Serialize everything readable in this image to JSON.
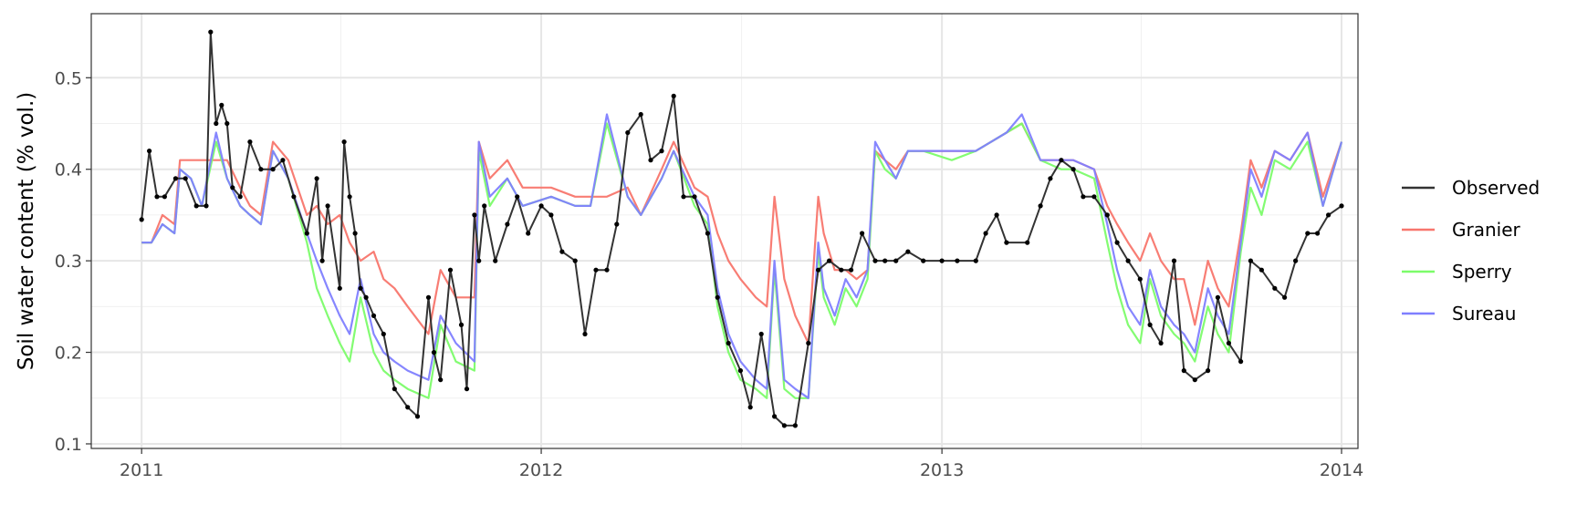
{
  "chart_data": {
    "type": "line",
    "title": "",
    "xlabel": "",
    "ylabel": "Soil water content (% vol.)",
    "xlim": [
      "2010-11-16",
      "2014-01-16"
    ],
    "ylim": [
      0.095,
      0.57
    ],
    "grid": true,
    "legend_position": "right",
    "x_ticks": [
      {
        "value": "2011-01-01",
        "label": "2011"
      },
      {
        "value": "2012-01-01",
        "label": "2012"
      },
      {
        "value": "2013-01-01",
        "label": "2013"
      },
      {
        "value": "2014-01-01",
        "label": "2014"
      }
    ],
    "y_ticks": [
      {
        "value": 0.1,
        "label": "0.1"
      },
      {
        "value": 0.2,
        "label": "0.2"
      },
      {
        "value": 0.3,
        "label": "0.3"
      },
      {
        "value": 0.4,
        "label": "0.4"
      },
      {
        "value": 0.5,
        "label": "0.5"
      }
    ],
    "series": [
      {
        "name": "Granier",
        "color": "#F8766D",
        "x": [
          "2011-01-01",
          "2011-01-10",
          "2011-01-20",
          "2011-01-31",
          "2011-02-05",
          "2011-02-15",
          "2011-02-25",
          "2011-03-10",
          "2011-03-20",
          "2011-04-01",
          "2011-04-10",
          "2011-04-20",
          "2011-05-01",
          "2011-05-15",
          "2011-06-01",
          "2011-06-10",
          "2011-06-20",
          "2011-07-01",
          "2011-07-10",
          "2011-07-20",
          "2011-08-01",
          "2011-08-10",
          "2011-08-20",
          "2011-09-01",
          "2011-09-20",
          "2011-10-01",
          "2011-10-15",
          "2011-11-01",
          "2011-11-05",
          "2011-11-15",
          "2011-12-01",
          "2011-12-15",
          "2012-01-10",
          "2012-02-01",
          "2012-02-15",
          "2012-03-01",
          "2012-03-20",
          "2012-04-01",
          "2012-04-20",
          "2012-05-01",
          "2012-05-20",
          "2012-06-01",
          "2012-06-10",
          "2012-06-20",
          "2012-07-01",
          "2012-07-15",
          "2012-07-25",
          "2012-08-01",
          "2012-08-10",
          "2012-08-20",
          "2012-09-01",
          "2012-09-10",
          "2012-09-15",
          "2012-09-25",
          "2012-10-05",
          "2012-10-15",
          "2012-10-25",
          "2012-11-01",
          "2012-11-10",
          "2012-11-20",
          "2012-12-01",
          "2012-12-15",
          "2013-01-10",
          "2013-02-01",
          "2013-02-15",
          "2013-03-01",
          "2013-03-15",
          "2013-04-01",
          "2013-04-20",
          "2013-05-01",
          "2013-05-20",
          "2013-06-01",
          "2013-06-10",
          "2013-06-20",
          "2013-07-01",
          "2013-07-10",
          "2013-07-20",
          "2013-08-01",
          "2013-08-10",
          "2013-08-20",
          "2013-09-01",
          "2013-09-10",
          "2013-09-20",
          "2013-10-01",
          "2013-10-10",
          "2013-10-20",
          "2013-11-01",
          "2013-11-15",
          "2013-12-01",
          "2013-12-15",
          "2014-01-01"
        ],
        "values": [
          0.32,
          0.32,
          0.35,
          0.34,
          0.41,
          0.41,
          0.41,
          0.41,
          0.41,
          0.38,
          0.36,
          0.35,
          0.43,
          0.41,
          0.35,
          0.36,
          0.34,
          0.35,
          0.32,
          0.3,
          0.31,
          0.28,
          0.27,
          0.25,
          0.22,
          0.29,
          0.26,
          0.26,
          0.43,
          0.39,
          0.41,
          0.38,
          0.38,
          0.37,
          0.37,
          0.37,
          0.38,
          0.35,
          0.4,
          0.43,
          0.38,
          0.37,
          0.33,
          0.3,
          0.28,
          0.26,
          0.25,
          0.37,
          0.28,
          0.24,
          0.21,
          0.37,
          0.33,
          0.29,
          0.29,
          0.28,
          0.29,
          0.42,
          0.41,
          0.4,
          0.42,
          0.42,
          0.42,
          0.42,
          0.43,
          0.44,
          0.45,
          0.41,
          0.41,
          0.41,
          0.4,
          0.36,
          0.34,
          0.32,
          0.3,
          0.33,
          0.3,
          0.28,
          0.28,
          0.23,
          0.3,
          0.27,
          0.25,
          0.33,
          0.41,
          0.38,
          0.42,
          0.41,
          0.44,
          0.37,
          0.43
        ]
      },
      {
        "name": "Sperry",
        "color": "#7CFC6A",
        "x": [
          "2011-01-01",
          "2011-01-10",
          "2011-01-20",
          "2011-01-31",
          "2011-02-05",
          "2011-02-15",
          "2011-02-25",
          "2011-03-10",
          "2011-03-20",
          "2011-04-01",
          "2011-04-10",
          "2011-04-20",
          "2011-05-01",
          "2011-05-15",
          "2011-06-01",
          "2011-06-10",
          "2011-06-20",
          "2011-07-01",
          "2011-07-10",
          "2011-07-20",
          "2011-08-01",
          "2011-08-10",
          "2011-08-20",
          "2011-09-01",
          "2011-09-20",
          "2011-10-01",
          "2011-10-15",
          "2011-11-01",
          "2011-11-05",
          "2011-11-15",
          "2011-12-01",
          "2011-12-15",
          "2012-01-10",
          "2012-02-01",
          "2012-02-15",
          "2012-03-01",
          "2012-03-20",
          "2012-04-01",
          "2012-04-20",
          "2012-05-01",
          "2012-05-20",
          "2012-06-01",
          "2012-06-10",
          "2012-06-20",
          "2012-07-01",
          "2012-07-15",
          "2012-07-25",
          "2012-08-01",
          "2012-08-10",
          "2012-08-20",
          "2012-09-01",
          "2012-09-10",
          "2012-09-15",
          "2012-09-25",
          "2012-10-05",
          "2012-10-15",
          "2012-10-25",
          "2012-11-01",
          "2012-11-10",
          "2012-11-20",
          "2012-12-01",
          "2012-12-15",
          "2013-01-10",
          "2013-02-01",
          "2013-02-15",
          "2013-03-01",
          "2013-03-15",
          "2013-04-01",
          "2013-04-20",
          "2013-05-01",
          "2013-05-20",
          "2013-06-01",
          "2013-06-10",
          "2013-06-20",
          "2013-07-01",
          "2013-07-10",
          "2013-07-20",
          "2013-08-01",
          "2013-08-10",
          "2013-08-20",
          "2013-09-01",
          "2013-09-10",
          "2013-09-20",
          "2013-10-01",
          "2013-10-10",
          "2013-10-20",
          "2013-11-01",
          "2013-11-15",
          "2013-12-01",
          "2013-12-15",
          "2014-01-01"
        ],
        "values": [
          0.32,
          0.32,
          0.34,
          0.33,
          0.4,
          0.39,
          0.36,
          0.43,
          0.39,
          0.36,
          0.35,
          0.34,
          0.42,
          0.39,
          0.32,
          0.27,
          0.24,
          0.21,
          0.19,
          0.26,
          0.2,
          0.18,
          0.17,
          0.16,
          0.15,
          0.23,
          0.19,
          0.18,
          0.42,
          0.36,
          0.39,
          0.36,
          0.37,
          0.36,
          0.36,
          0.45,
          0.37,
          0.35,
          0.39,
          0.42,
          0.36,
          0.34,
          0.25,
          0.2,
          0.17,
          0.16,
          0.15,
          0.29,
          0.16,
          0.15,
          0.15,
          0.31,
          0.26,
          0.23,
          0.27,
          0.25,
          0.28,
          0.42,
          0.4,
          0.39,
          0.42,
          0.42,
          0.41,
          0.42,
          0.43,
          0.44,
          0.45,
          0.41,
          0.4,
          0.4,
          0.39,
          0.32,
          0.27,
          0.23,
          0.21,
          0.28,
          0.24,
          0.22,
          0.21,
          0.19,
          0.25,
          0.22,
          0.2,
          0.31,
          0.38,
          0.35,
          0.41,
          0.4,
          0.43,
          0.36,
          0.43
        ]
      },
      {
        "name": "Sureau",
        "color": "#7F7FFF",
        "x": [
          "2011-01-01",
          "2011-01-10",
          "2011-01-20",
          "2011-01-31",
          "2011-02-05",
          "2011-02-15",
          "2011-02-25",
          "2011-03-10",
          "2011-03-20",
          "2011-04-01",
          "2011-04-10",
          "2011-04-20",
          "2011-05-01",
          "2011-05-15",
          "2011-06-01",
          "2011-06-10",
          "2011-06-20",
          "2011-07-01",
          "2011-07-10",
          "2011-07-20",
          "2011-08-01",
          "2011-08-10",
          "2011-08-20",
          "2011-09-01",
          "2011-09-20",
          "2011-10-01",
          "2011-10-15",
          "2011-11-01",
          "2011-11-05",
          "2011-11-15",
          "2011-12-01",
          "2011-12-15",
          "2012-01-10",
          "2012-02-01",
          "2012-02-15",
          "2012-03-01",
          "2012-03-20",
          "2012-04-01",
          "2012-04-20",
          "2012-05-01",
          "2012-05-20",
          "2012-06-01",
          "2012-06-10",
          "2012-06-20",
          "2012-07-01",
          "2012-07-15",
          "2012-07-25",
          "2012-08-01",
          "2012-08-10",
          "2012-08-20",
          "2012-09-01",
          "2012-09-10",
          "2012-09-15",
          "2012-09-25",
          "2012-10-05",
          "2012-10-15",
          "2012-10-25",
          "2012-11-01",
          "2012-11-10",
          "2012-11-20",
          "2012-12-01",
          "2012-12-15",
          "2013-01-10",
          "2013-02-01",
          "2013-02-15",
          "2013-03-01",
          "2013-03-15",
          "2013-04-01",
          "2013-04-20",
          "2013-05-01",
          "2013-05-20",
          "2013-06-01",
          "2013-06-10",
          "2013-06-20",
          "2013-07-01",
          "2013-07-10",
          "2013-07-20",
          "2013-08-01",
          "2013-08-10",
          "2013-08-20",
          "2013-09-01",
          "2013-09-10",
          "2013-09-20",
          "2013-10-01",
          "2013-10-10",
          "2013-10-20",
          "2013-11-01",
          "2013-11-15",
          "2013-12-01",
          "2013-12-15",
          "2014-01-01"
        ],
        "values": [
          0.32,
          0.32,
          0.34,
          0.33,
          0.4,
          0.39,
          0.36,
          0.44,
          0.39,
          0.36,
          0.35,
          0.34,
          0.42,
          0.39,
          0.33,
          0.3,
          0.27,
          0.24,
          0.22,
          0.28,
          0.22,
          0.2,
          0.19,
          0.18,
          0.17,
          0.24,
          0.21,
          0.19,
          0.43,
          0.37,
          0.39,
          0.36,
          0.37,
          0.36,
          0.36,
          0.46,
          0.37,
          0.35,
          0.39,
          0.42,
          0.37,
          0.35,
          0.27,
          0.22,
          0.19,
          0.17,
          0.16,
          0.3,
          0.17,
          0.16,
          0.15,
          0.32,
          0.27,
          0.24,
          0.28,
          0.26,
          0.29,
          0.43,
          0.41,
          0.39,
          0.42,
          0.42,
          0.42,
          0.42,
          0.43,
          0.44,
          0.46,
          0.41,
          0.41,
          0.41,
          0.4,
          0.34,
          0.29,
          0.25,
          0.23,
          0.29,
          0.25,
          0.23,
          0.22,
          0.2,
          0.27,
          0.24,
          0.22,
          0.32,
          0.4,
          0.37,
          0.42,
          0.41,
          0.44,
          0.36,
          0.43
        ]
      },
      {
        "name": "Observed",
        "color": "#333333",
        "x": [
          "2011-01-01",
          "2011-01-08",
          "2011-01-15",
          "2011-01-22",
          "2011-02-01",
          "2011-02-10",
          "2011-02-20",
          "2011-03-01",
          "2011-03-05",
          "2011-03-10",
          "2011-03-15",
          "2011-03-20",
          "2011-03-25",
          "2011-04-01",
          "2011-04-10",
          "2011-04-20",
          "2011-05-01",
          "2011-05-10",
          "2011-05-20",
          "2011-06-01",
          "2011-06-10",
          "2011-06-15",
          "2011-06-20",
          "2011-07-01",
          "2011-07-05",
          "2011-07-10",
          "2011-07-15",
          "2011-07-20",
          "2011-07-25",
          "2011-08-01",
          "2011-08-10",
          "2011-08-20",
          "2011-09-01",
          "2011-09-10",
          "2011-09-20",
          "2011-09-25",
          "2011-10-01",
          "2011-10-10",
          "2011-10-20",
          "2011-10-25",
          "2011-11-01",
          "2011-11-05",
          "2011-11-10",
          "2011-11-20",
          "2011-12-01",
          "2011-12-10",
          "2011-12-20",
          "2012-01-01",
          "2012-01-10",
          "2012-01-20",
          "2012-02-01",
          "2012-02-10",
          "2012-02-20",
          "2012-03-01",
          "2012-03-10",
          "2012-03-20",
          "2012-04-01",
          "2012-04-10",
          "2012-04-20",
          "2012-05-01",
          "2012-05-10",
          "2012-05-20",
          "2012-06-01",
          "2012-06-10",
          "2012-06-20",
          "2012-07-01",
          "2012-07-10",
          "2012-07-20",
          "2012-08-01",
          "2012-08-10",
          "2012-08-20",
          "2012-09-01",
          "2012-09-10",
          "2012-09-20",
          "2012-10-01",
          "2012-10-10",
          "2012-10-20",
          "2012-11-01",
          "2012-11-10",
          "2012-11-20",
          "2012-12-01",
          "2012-12-15",
          "2013-01-01",
          "2013-01-15",
          "2013-02-01",
          "2013-02-10",
          "2013-02-20",
          "2013-03-01",
          "2013-03-20",
          "2013-04-01",
          "2013-04-10",
          "2013-04-20",
          "2013-05-01",
          "2013-05-10",
          "2013-05-20",
          "2013-06-01",
          "2013-06-10",
          "2013-06-20",
          "2013-07-01",
          "2013-07-10",
          "2013-07-20",
          "2013-08-01",
          "2013-08-10",
          "2013-08-20",
          "2013-09-01",
          "2013-09-10",
          "2013-09-20",
          "2013-10-01",
          "2013-10-10",
          "2013-10-20",
          "2013-11-01",
          "2013-11-10",
          "2013-11-20",
          "2013-12-01",
          "2013-12-10",
          "2013-12-20",
          "2014-01-01"
        ],
        "values": [
          0.345,
          0.42,
          0.37,
          0.37,
          0.39,
          0.39,
          0.36,
          0.36,
          0.55,
          0.45,
          0.47,
          0.45,
          0.38,
          0.37,
          0.43,
          0.4,
          0.4,
          0.41,
          0.37,
          0.33,
          0.39,
          0.3,
          0.36,
          0.27,
          0.43,
          0.37,
          0.33,
          0.27,
          0.26,
          0.24,
          0.22,
          0.16,
          0.14,
          0.13,
          0.26,
          0.2,
          0.17,
          0.29,
          0.23,
          0.16,
          0.35,
          0.3,
          0.36,
          0.3,
          0.34,
          0.37,
          0.33,
          0.36,
          0.35,
          0.31,
          0.3,
          0.22,
          0.29,
          0.29,
          0.34,
          0.44,
          0.46,
          0.41,
          0.42,
          0.48,
          0.37,
          0.37,
          0.33,
          0.26,
          0.21,
          0.18,
          0.14,
          0.22,
          0.13,
          0.12,
          0.12,
          0.21,
          0.29,
          0.3,
          0.29,
          0.29,
          0.33,
          0.3,
          0.3,
          0.3,
          0.31,
          0.3,
          0.3,
          0.3,
          0.3,
          0.33,
          0.35,
          0.32,
          0.32,
          0.36,
          0.39,
          0.41,
          0.4,
          0.37,
          0.37,
          0.35,
          0.32,
          0.3,
          0.28,
          0.23,
          0.21,
          0.3,
          0.18,
          0.17,
          0.18,
          0.26,
          0.21,
          0.19,
          0.3,
          0.29,
          0.27,
          0.26,
          0.3,
          0.33,
          0.33,
          0.35,
          0.36
        ]
      }
    ],
    "legend": [
      {
        "label": "Observed",
        "color": "#333333"
      },
      {
        "label": "Granier",
        "color": "#F8766D"
      },
      {
        "label": "Sperry",
        "color": "#7CFC6A"
      },
      {
        "label": "Sureau",
        "color": "#7F7FFF"
      }
    ]
  }
}
